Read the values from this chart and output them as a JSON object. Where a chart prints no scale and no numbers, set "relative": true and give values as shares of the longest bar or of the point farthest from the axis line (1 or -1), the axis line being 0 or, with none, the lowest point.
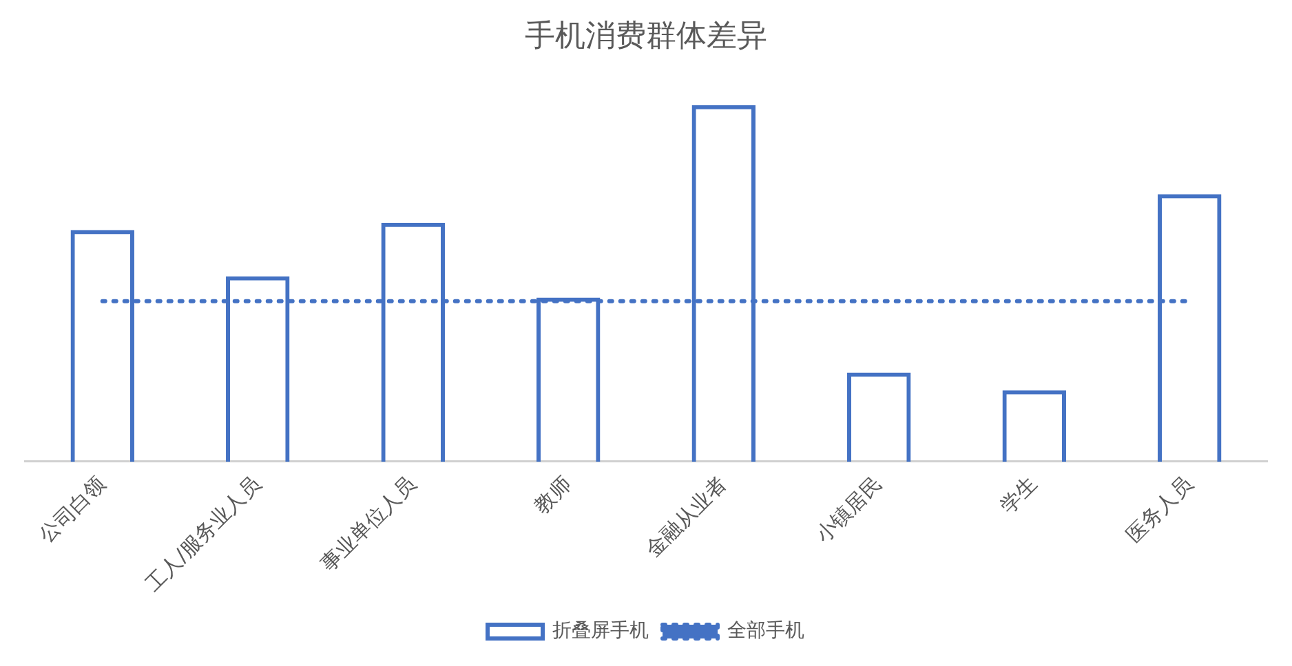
{
  "chart_data": {
    "type": "bar",
    "title": "手机消费群体差异",
    "relative": true,
    "categories": [
      "公司白领",
      "工人/服务业人员",
      "事业单位人员",
      "教师",
      "金融从业者",
      "小镇居民",
      "学生",
      "医务人员"
    ],
    "series": [
      {
        "name": "折叠屏手机",
        "color": "#4472c4",
        "values": [
          0.65,
          0.52,
          0.67,
          0.46,
          1,
          0.25,
          0.2,
          0.75
        ]
      },
      {
        "name": "全部手机",
        "type": "line",
        "line_style": "dotted",
        "color": "#4472c4",
        "values": [
          0.45,
          0.45,
          0.45,
          0.45,
          0.45,
          0.45,
          0.45,
          0.45
        ]
      }
    ],
    "grid": false,
    "legend": "bottom",
    "marker": "none"
  }
}
